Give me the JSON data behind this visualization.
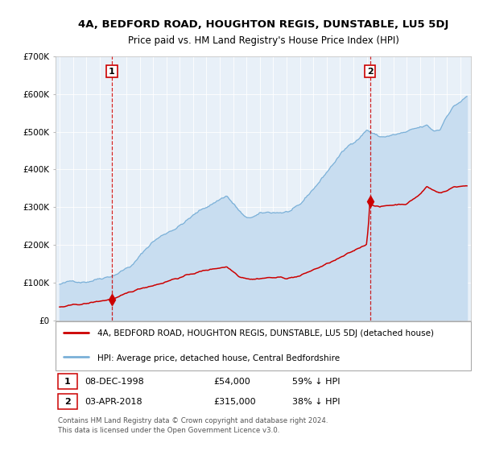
{
  "title": "4A, BEDFORD ROAD, HOUGHTON REGIS, DUNSTABLE, LU5 5DJ",
  "subtitle": "Price paid vs. HM Land Registry's House Price Index (HPI)",
  "ylim": [
    0,
    700000
  ],
  "yticks": [
    0,
    100000,
    200000,
    300000,
    400000,
    500000,
    600000,
    700000
  ],
  "ytick_labels": [
    "£0",
    "£100K",
    "£200K",
    "£300K",
    "£400K",
    "£500K",
    "£600K",
    "£700K"
  ],
  "xlim_start": 1994.7,
  "xlim_end": 2025.8,
  "hpi_fill_color": "#c8ddf0",
  "hpi_line_color": "#7ab0d8",
  "price_color": "#cc0000",
  "plot_bg_color": "#e8f0f8",
  "vline1_x": 1998.92,
  "vline2_x": 2018.25,
  "sale1_y": 54000,
  "sale2_y": 315000,
  "sale1_date": "08-DEC-1998",
  "sale1_price": "£54,000",
  "sale1_hpi": "59% ↓ HPI",
  "sale2_date": "03-APR-2018",
  "sale2_price": "£315,000",
  "sale2_hpi": "38% ↓ HPI",
  "legend_line1": "4A, BEDFORD ROAD, HOUGHTON REGIS, DUNSTABLE, LU5 5DJ (detached house)",
  "legend_line2": "HPI: Average price, detached house, Central Bedfordshire",
  "footer": "Contains HM Land Registry data © Crown copyright and database right 2024.\nThis data is licensed under the Open Government Licence v3.0.",
  "title_fontsize": 9.5,
  "subtitle_fontsize": 8.5,
  "hpi_anchors_x": [
    1995.0,
    1997.0,
    1999.0,
    2000.5,
    2002.0,
    2004.0,
    2005.0,
    2007.5,
    2009.0,
    2010.0,
    2012.0,
    2013.0,
    2014.5,
    2016.0,
    2017.5,
    2018.0,
    2018.5,
    2019.0,
    2020.0,
    2021.0,
    2022.5,
    2023.0,
    2023.5,
    2024.0,
    2024.5,
    2025.5
  ],
  "hpi_anchors_y": [
    95000,
    105000,
    130000,
    160000,
    220000,
    265000,
    290000,
    345000,
    280000,
    290000,
    295000,
    305000,
    370000,
    440000,
    490000,
    510000,
    500000,
    490000,
    495000,
    500000,
    510000,
    495000,
    500000,
    540000,
    565000,
    590000
  ],
  "price_anchors_x": [
    1995.0,
    1996.0,
    1997.0,
    1998.0,
    1998.92,
    2000.0,
    2001.0,
    2002.5,
    2003.5,
    2004.5,
    2005.5,
    2006.5,
    2007.5,
    2008.5,
    2009.5,
    2010.5,
    2011.5,
    2012.0,
    2013.0,
    2014.0,
    2015.0,
    2016.0,
    2017.0,
    2018.0,
    2018.26,
    2018.5,
    2019.0,
    2020.0,
    2021.0,
    2022.0,
    2022.5,
    2023.0,
    2023.5,
    2024.0,
    2024.5,
    2025.5
  ],
  "price_anchors_y": [
    35000,
    38000,
    42000,
    48000,
    54000,
    65000,
    78000,
    95000,
    108000,
    118000,
    128000,
    135000,
    143000,
    118000,
    115000,
    120000,
    120000,
    118000,
    125000,
    140000,
    155000,
    170000,
    185000,
    205000,
    315000,
    310000,
    305000,
    310000,
    315000,
    340000,
    360000,
    350000,
    345000,
    350000,
    360000,
    365000
  ]
}
